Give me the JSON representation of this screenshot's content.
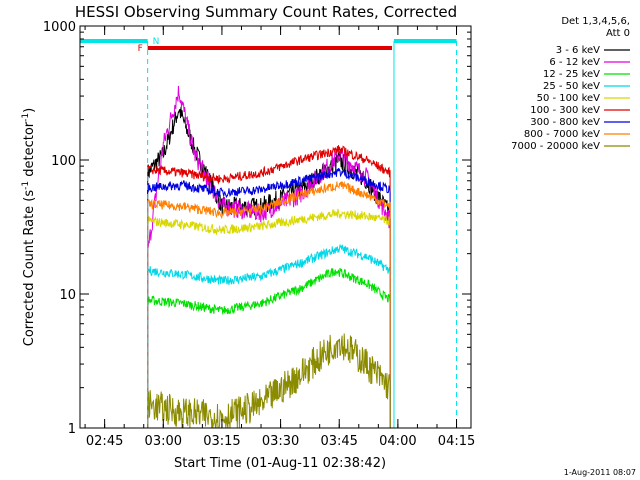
{
  "chart_data": {
    "type": "line",
    "title": "HESSI Observing Summary Count Rates, Corrected",
    "xlabel": "Start Time (01-Aug-11 02:38:42)",
    "ylabel": "Corrected Count Rate (s",
    "ylabel_sup1": "-1",
    "ylabel_mid": " detector",
    "ylabel_sup2": "-1",
    "ylabel_end": ")",
    "timestamp": "1-Aug-2011 08:07",
    "legend_header": [
      "Det 1,3,4,5,6,",
      "Att 0"
    ],
    "legend_position": "right",
    "y_scale": "log",
    "ylim": [
      1,
      1000
    ],
    "y_ticks": [
      {
        "value": 1,
        "label": "1"
      },
      {
        "value": 10,
        "label": "10"
      },
      {
        "value": 100,
        "label": "100"
      },
      {
        "value": 1000,
        "label": "1000"
      }
    ],
    "x_ticks": [
      "02:45",
      "03:00",
      "03:15",
      "03:30",
      "03:45",
      "04:00",
      "04:15"
    ],
    "xlim": [
      "02:38:42",
      "04:18:42"
    ],
    "flags": {
      "spacecraft_night": [
        {
          "start": "02:38:42",
          "end": "02:56:00"
        },
        {
          "start": "03:59:00",
          "end": "04:15:00"
        }
      ],
      "saa_label": "N",
      "flare_label": "F",
      "flare_start": "02:56:00",
      "flare_end": "03:58:30",
      "night_color": "#00e5e5",
      "flare_color": "#e00000"
    },
    "series": [
      {
        "name": "3 - 6 keV",
        "color": "#000000",
        "points": [
          [
            "02:56:00",
            80
          ],
          [
            "03:00:00",
            110
          ],
          [
            "03:04:00",
            240
          ],
          [
            "03:08:00",
            120
          ],
          [
            "03:15:00",
            45
          ],
          [
            "03:25:00",
            45
          ],
          [
            "03:35:00",
            60
          ],
          [
            "03:45:00",
            100
          ],
          [
            "03:52:00",
            70
          ],
          [
            "03:58:00",
            40
          ]
        ]
      },
      {
        "name": "6 - 12 keV",
        "color": "#e000e0",
        "points": [
          [
            "02:56:00",
            20
          ],
          [
            "03:00:00",
            130
          ],
          [
            "03:04:00",
            330
          ],
          [
            "03:08:00",
            110
          ],
          [
            "03:15:00",
            45
          ],
          [
            "03:25:00",
            40
          ],
          [
            "03:35:00",
            55
          ],
          [
            "03:45:00",
            110
          ],
          [
            "03:52:00",
            75
          ],
          [
            "03:58:00",
            35
          ]
        ]
      },
      {
        "name": "12 - 25 keV",
        "color": "#00e000",
        "points": [
          [
            "02:56:00",
            9
          ],
          [
            "03:05:00",
            8.5
          ],
          [
            "03:15:00",
            7.5
          ],
          [
            "03:25:00",
            8.5
          ],
          [
            "03:35:00",
            11
          ],
          [
            "03:44:00",
            15
          ],
          [
            "03:52:00",
            12
          ],
          [
            "03:58:00",
            9
          ]
        ]
      },
      {
        "name": "25 - 50 keV",
        "color": "#00d8e8",
        "points": [
          [
            "02:56:00",
            15
          ],
          [
            "03:05:00",
            14
          ],
          [
            "03:15:00",
            12.5
          ],
          [
            "03:25:00",
            13.5
          ],
          [
            "03:35:00",
            17
          ],
          [
            "03:45:00",
            22
          ],
          [
            "03:52:00",
            19
          ],
          [
            "03:58:00",
            15
          ]
        ]
      },
      {
        "name": "50 - 100 keV",
        "color": "#d8d800",
        "points": [
          [
            "02:56:00",
            35
          ],
          [
            "03:05:00",
            33
          ],
          [
            "03:15:00",
            30
          ],
          [
            "03:25:00",
            32
          ],
          [
            "03:35:00",
            36
          ],
          [
            "03:45:00",
            40
          ],
          [
            "03:52:00",
            38
          ],
          [
            "03:58:00",
            35
          ]
        ]
      },
      {
        "name": "100 - 300 keV",
        "color": "#e00000",
        "points": [
          [
            "02:56:00",
            85
          ],
          [
            "03:05:00",
            80
          ],
          [
            "03:15:00",
            72
          ],
          [
            "03:25:00",
            80
          ],
          [
            "03:35:00",
            100
          ],
          [
            "03:45:00",
            120
          ],
          [
            "03:52:00",
            100
          ],
          [
            "03:58:00",
            80
          ]
        ]
      },
      {
        "name": "300 - 800 keV",
        "color": "#0000e0",
        "points": [
          [
            "02:56:00",
            62
          ],
          [
            "03:05:00",
            65
          ],
          [
            "03:15:00",
            57
          ],
          [
            "03:25:00",
            60
          ],
          [
            "03:35:00",
            70
          ],
          [
            "03:45:00",
            82
          ],
          [
            "03:52:00",
            70
          ],
          [
            "03:58:00",
            60
          ]
        ]
      },
      {
        "name": "800 - 7000 keV",
        "color": "#ff7f00",
        "points": [
          [
            "02:56:00",
            47
          ],
          [
            "03:05:00",
            45
          ],
          [
            "03:15:00",
            40
          ],
          [
            "03:25:00",
            43
          ],
          [
            "03:35:00",
            55
          ],
          [
            "03:45:00",
            65
          ],
          [
            "03:52:00",
            55
          ],
          [
            "03:58:00",
            45
          ]
        ]
      },
      {
        "name": "7000 - 20000 keV",
        "color": "#8b8b00",
        "points": [
          [
            "02:56:00",
            1.5
          ],
          [
            "03:05:00",
            1.3
          ],
          [
            "03:15:00",
            1.2
          ],
          [
            "03:25:00",
            1.5
          ],
          [
            "03:35:00",
            2.5
          ],
          [
            "03:45:00",
            4.5
          ],
          [
            "03:52:00",
            3
          ],
          [
            "03:58:00",
            2
          ]
        ]
      }
    ]
  }
}
